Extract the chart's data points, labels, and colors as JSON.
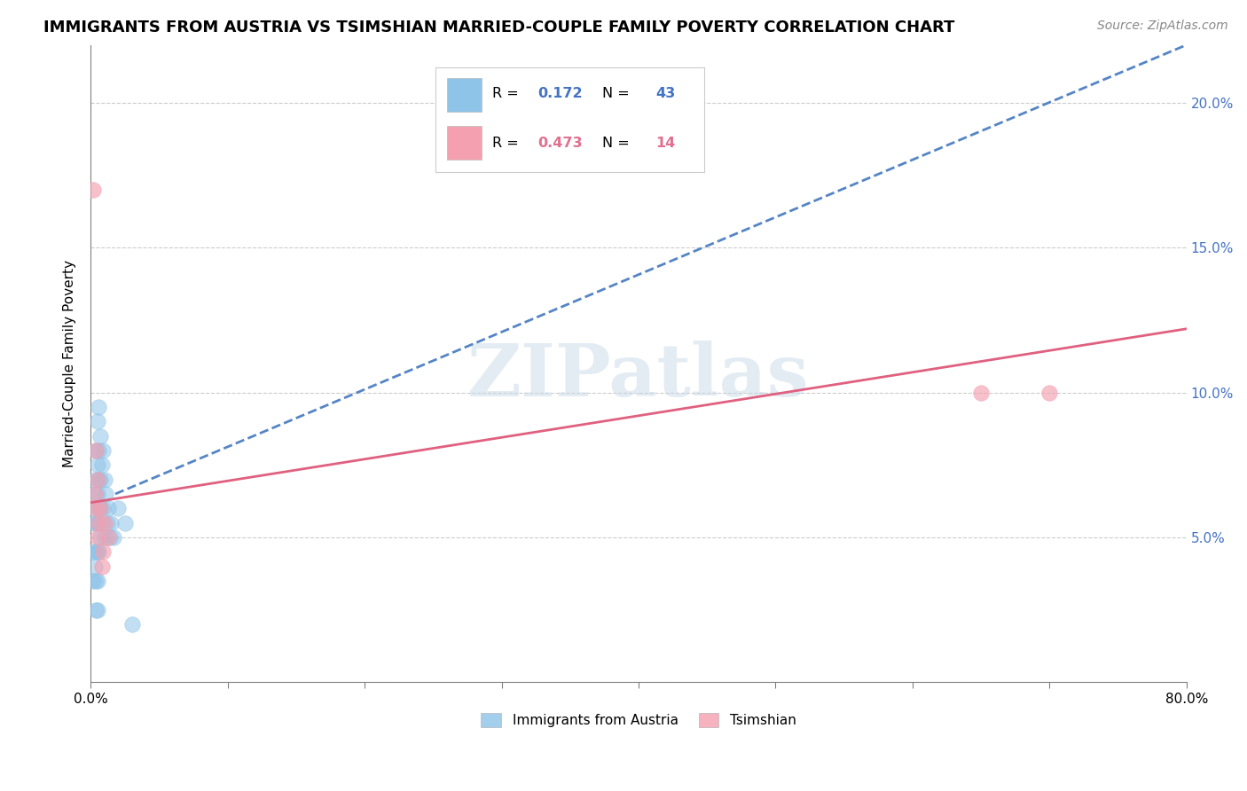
{
  "title": "IMMIGRANTS FROM AUSTRIA VS TSIMSHIAN MARRIED-COUPLE FAMILY POVERTY CORRELATION CHART",
  "source": "Source: ZipAtlas.com",
  "ylabel": "Married-Couple Family Poverty",
  "xlim": [
    0.0,
    0.8
  ],
  "ylim": [
    0.0,
    0.22
  ],
  "xticks": [
    0.0,
    0.1,
    0.2,
    0.3,
    0.4,
    0.5,
    0.6,
    0.7,
    0.8
  ],
  "xticklabels": [
    "0.0%",
    "",
    "",
    "",
    "",
    "",
    "",
    "",
    "80.0%"
  ],
  "yticks": [
    0.0,
    0.05,
    0.1,
    0.15,
    0.2
  ],
  "yticklabels_right": [
    "",
    "5.0%",
    "10.0%",
    "15.0%",
    "20.0%"
  ],
  "color_blue": "#8ec4e8",
  "color_pink": "#f4a0b0",
  "color_blue_line": "#5585c5",
  "color_pink_line": "#e06080",
  "color_blue_text": "#4472c4",
  "color_pink_text": "#e07090",
  "watermark": "ZIPatlas",
  "austria_x": [
    0.002,
    0.002,
    0.003,
    0.003,
    0.003,
    0.003,
    0.004,
    0.004,
    0.004,
    0.004,
    0.004,
    0.004,
    0.005,
    0.005,
    0.005,
    0.005,
    0.005,
    0.005,
    0.005,
    0.006,
    0.006,
    0.006,
    0.006,
    0.006,
    0.007,
    0.007,
    0.007,
    0.007,
    0.008,
    0.008,
    0.009,
    0.009,
    0.01,
    0.01,
    0.011,
    0.012,
    0.013,
    0.014,
    0.015,
    0.017,
    0.02,
    0.025,
    0.03
  ],
  "austria_y": [
    0.035,
    0.045,
    0.06,
    0.07,
    0.055,
    0.04,
    0.08,
    0.065,
    0.055,
    0.045,
    0.035,
    0.025,
    0.09,
    0.075,
    0.065,
    0.055,
    0.045,
    0.035,
    0.025,
    0.095,
    0.08,
    0.07,
    0.06,
    0.045,
    0.085,
    0.07,
    0.06,
    0.05,
    0.075,
    0.055,
    0.08,
    0.06,
    0.07,
    0.05,
    0.065,
    0.055,
    0.06,
    0.05,
    0.055,
    0.05,
    0.06,
    0.055,
    0.02
  ],
  "tsimshian_x": [
    0.002,
    0.003,
    0.004,
    0.004,
    0.005,
    0.005,
    0.006,
    0.007,
    0.008,
    0.009,
    0.01,
    0.013,
    0.65,
    0.7
  ],
  "tsimshian_y": [
    0.17,
    0.065,
    0.08,
    0.06,
    0.07,
    0.05,
    0.055,
    0.06,
    0.04,
    0.045,
    0.055,
    0.05,
    0.1,
    0.1
  ],
  "austria_line_x": [
    0.018,
    0.8
  ],
  "austria_line_y": [
    0.065,
    0.22
  ],
  "tsimshian_line_x": [
    0.0,
    0.8
  ],
  "tsimshian_line_y": [
    0.062,
    0.122
  ]
}
